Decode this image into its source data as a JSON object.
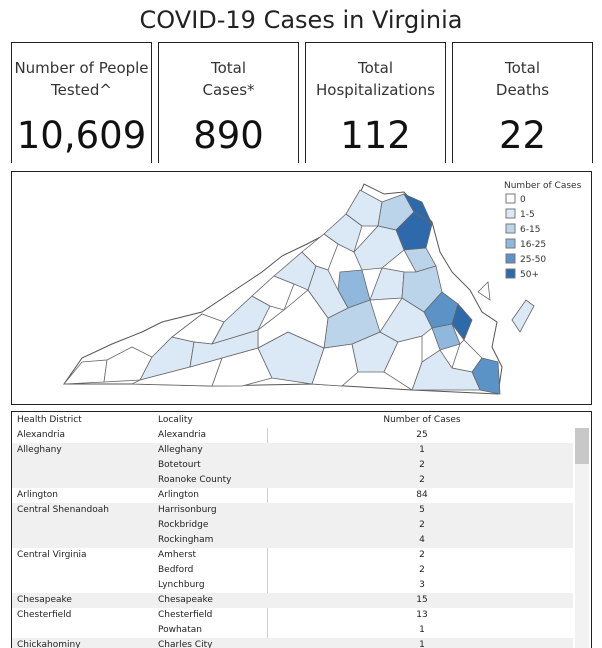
{
  "title": "COVID-19 Cases in Virginia",
  "cards": [
    {
      "label": "Number of People Tested^",
      "value": "10,609"
    },
    {
      "label": "Total Cases*",
      "value": "890"
    },
    {
      "label": "Total Hospitalizations",
      "value": "112"
    },
    {
      "label": "Total Deaths",
      "value": "22"
    }
  ],
  "map": {
    "legend_title": "Number of Cases",
    "legend": [
      {
        "label": "0",
        "color": "#ffffff"
      },
      {
        "label": "1-5",
        "color": "#dbe8f5"
      },
      {
        "label": "6-15",
        "color": "#bcd4ea"
      },
      {
        "label": "16-25",
        "color": "#8fb8dc"
      },
      {
        "label": "25-50",
        "color": "#5b93c7"
      },
      {
        "label": "50+",
        "color": "#2e6aab"
      }
    ]
  },
  "table": {
    "headers": {
      "district": "Health District",
      "locality": "Locality",
      "cases": "Number of Cases"
    },
    "rows": [
      {
        "district": "Alexandria",
        "locality": "Alexandria",
        "cases": "25",
        "shade": false
      },
      {
        "district": "Alleghany",
        "locality": "Alleghany",
        "cases": "1",
        "shade": true
      },
      {
        "district": "",
        "locality": "Botetourt",
        "cases": "2",
        "shade": true
      },
      {
        "district": "",
        "locality": "Roanoke County",
        "cases": "2",
        "shade": true
      },
      {
        "district": "Arlington",
        "locality": "Arlington",
        "cases": "84",
        "shade": false
      },
      {
        "district": "Central Shenandoah",
        "locality": "Harrisonburg",
        "cases": "5",
        "shade": true
      },
      {
        "district": "",
        "locality": "Rockbridge",
        "cases": "2",
        "shade": true
      },
      {
        "district": "",
        "locality": "Rockingham",
        "cases": "4",
        "shade": true
      },
      {
        "district": "Central Virginia",
        "locality": "Amherst",
        "cases": "2",
        "shade": false
      },
      {
        "district": "",
        "locality": "Bedford",
        "cases": "2",
        "shade": false
      },
      {
        "district": "",
        "locality": "Lynchburg",
        "cases": "3",
        "shade": false
      },
      {
        "district": "Chesapeake",
        "locality": "Chesapeake",
        "cases": "15",
        "shade": true
      },
      {
        "district": "Chesterfield",
        "locality": "Chesterfield",
        "cases": "13",
        "shade": false
      },
      {
        "district": "",
        "locality": "Powhatan",
        "cases": "1",
        "shade": false
      },
      {
        "district": "Chickahominy",
        "locality": "Charles City",
        "cases": "1",
        "shade": true
      }
    ]
  }
}
